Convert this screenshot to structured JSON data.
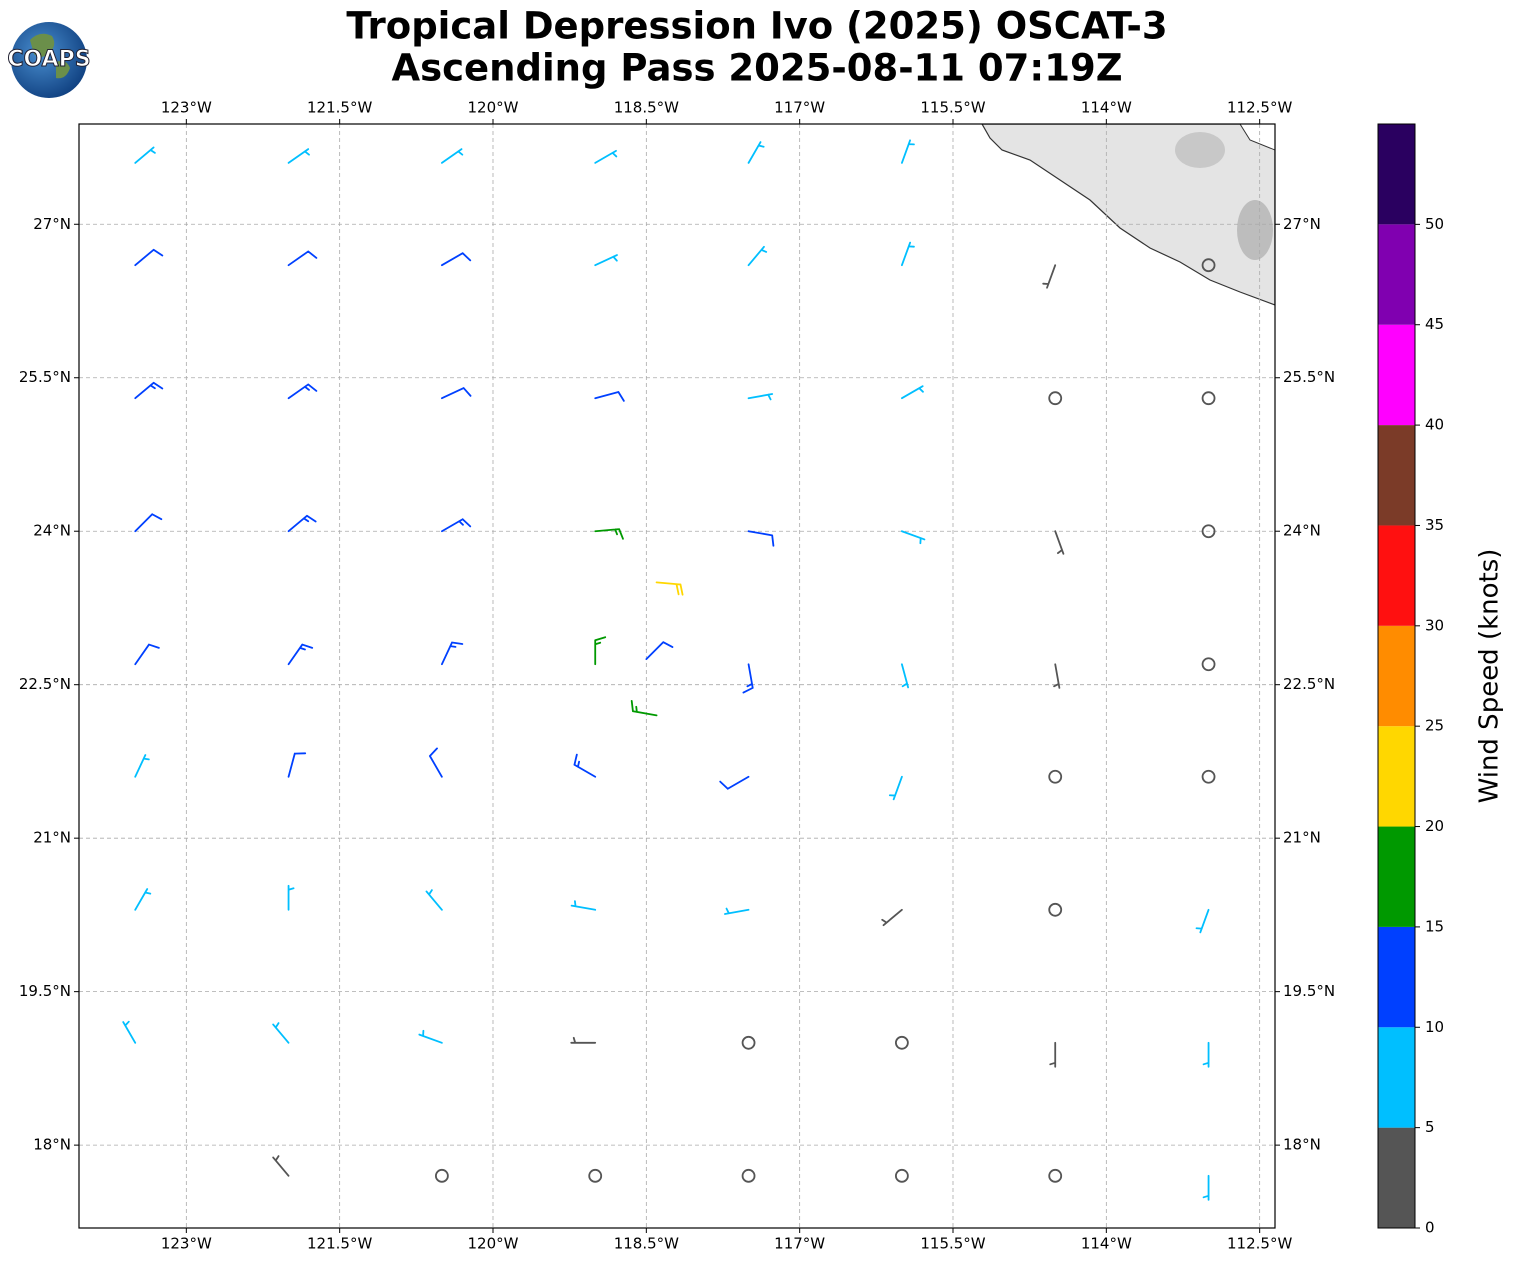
{
  "chart_data": {
    "type": "barb",
    "title": "Tropical Depression Ivo (2025) OSCAT-3",
    "subtitle": "Ascending Pass 2025-08-11 07:19Z",
    "logo": "COAPS",
    "xlim": [
      -124.05,
      -112.35
    ],
    "ylim": [
      17.19,
      27.98
    ],
    "xticks": [
      {
        "value": -123,
        "label": "123°W"
      },
      {
        "value": -121.5,
        "label": "121.5°W"
      },
      {
        "value": -120,
        "label": "120°W"
      },
      {
        "value": -118.5,
        "label": "118.5°W"
      },
      {
        "value": -117,
        "label": "117°W"
      },
      {
        "value": -115.5,
        "label": "115.5°W"
      },
      {
        "value": -114,
        "label": "114°W"
      },
      {
        "value": -112.5,
        "label": "112.5°W"
      }
    ],
    "yticks": [
      {
        "value": 18,
        "label": "18°N"
      },
      {
        "value": 19.5,
        "label": "19.5°N"
      },
      {
        "value": 21,
        "label": "21°N"
      },
      {
        "value": 22.5,
        "label": "22.5°N"
      },
      {
        "value": 24,
        "label": "24°N"
      },
      {
        "value": 25.5,
        "label": "25.5°N"
      },
      {
        "value": 27,
        "label": "27°N"
      }
    ],
    "grid": true,
    "colorbar": {
      "label": "Wind Speed (knots)",
      "ylim": [
        0,
        55
      ],
      "ticks": [
        0,
        5,
        10,
        15,
        20,
        25,
        30,
        35,
        40,
        45,
        50
      ],
      "colors": [
        "#555555",
        "#00bfff",
        "#0040ff",
        "#009900",
        "#ffd700",
        "#ff8c00",
        "#ff1010",
        "#7b3b28",
        "#ff00ff",
        "#8000b0",
        "#2a0060"
      ]
    },
    "barbs": [
      {
        "lon": -123.5,
        "lat": 27.6,
        "speed": 9,
        "dir": 50
      },
      {
        "lon": -122,
        "lat": 27.6,
        "speed": 9,
        "dir": 55
      },
      {
        "lon": -120.5,
        "lat": 27.6,
        "speed": 8,
        "dir": 55
      },
      {
        "lon": -119,
        "lat": 27.6,
        "speed": 8,
        "dir": 60
      },
      {
        "lon": -117.5,
        "lat": 27.6,
        "speed": 7,
        "dir": 30
      },
      {
        "lon": -116,
        "lat": 27.6,
        "speed": 6,
        "dir": 20
      },
      {
        "lon": -123.5,
        "lat": 26.6,
        "speed": 12,
        "dir": 50
      },
      {
        "lon": -122,
        "lat": 26.6,
        "speed": 12,
        "dir": 55
      },
      {
        "lon": -120.5,
        "lat": 26.6,
        "speed": 11,
        "dir": 60
      },
      {
        "lon": -119,
        "lat": 26.6,
        "speed": 9,
        "dir": 65
      },
      {
        "lon": -117.5,
        "lat": 26.6,
        "speed": 8,
        "dir": 40
      },
      {
        "lon": -116,
        "lat": 26.6,
        "speed": 7,
        "dir": 20
      },
      {
        "lon": -114.5,
        "lat": 26.6,
        "speed": 3,
        "dir": 200
      },
      {
        "lon": -113,
        "lat": 26.6,
        "speed": 2,
        "dir": 300
      },
      {
        "lon": -123.5,
        "lat": 25.3,
        "speed": 13,
        "dir": 50
      },
      {
        "lon": -122,
        "lat": 25.3,
        "speed": 13,
        "dir": 55
      },
      {
        "lon": -120.5,
        "lat": 25.3,
        "speed": 12,
        "dir": 65
      },
      {
        "lon": -119,
        "lat": 25.3,
        "speed": 10,
        "dir": 75
      },
      {
        "lon": -117.5,
        "lat": 25.3,
        "speed": 9,
        "dir": 80
      },
      {
        "lon": -116,
        "lat": 25.3,
        "speed": 7,
        "dir": 60
      },
      {
        "lon": -114.5,
        "lat": 25.3,
        "speed": 2,
        "dir": 180
      },
      {
        "lon": -113,
        "lat": 25.3,
        "speed": 1,
        "dir": 0
      },
      {
        "lon": -123.5,
        "lat": 24,
        "speed": 12,
        "dir": 45
      },
      {
        "lon": -122,
        "lat": 24,
        "speed": 13,
        "dir": 50
      },
      {
        "lon": -120.5,
        "lat": 24,
        "speed": 13,
        "dir": 60
      },
      {
        "lon": -119,
        "lat": 24,
        "speed": 16,
        "dir": 85
      },
      {
        "lon": -117.5,
        "lat": 24,
        "speed": 12,
        "dir": 100
      },
      {
        "lon": -116,
        "lat": 24,
        "speed": 8,
        "dir": 110
      },
      {
        "lon": -114.5,
        "lat": 24,
        "speed": 3,
        "dir": 160
      },
      {
        "lon": -113,
        "lat": 24,
        "speed": 2,
        "dir": 200
      },
      {
        "lon": -118.4,
        "lat": 23.5,
        "speed": 22,
        "dir": 95
      },
      {
        "lon": -118.5,
        "lat": 22.75,
        "speed": 11,
        "dir": 45
      },
      {
        "lon": -118.4,
        "lat": 22.2,
        "speed": 17,
        "dir": 280
      },
      {
        "lon": -123.5,
        "lat": 22.7,
        "speed": 12,
        "dir": 35
      },
      {
        "lon": -122,
        "lat": 22.7,
        "speed": 13,
        "dir": 35
      },
      {
        "lon": -120.5,
        "lat": 22.7,
        "speed": 14,
        "dir": 25
      },
      {
        "lon": -119,
        "lat": 22.7,
        "speed": 17,
        "dir": 0
      },
      {
        "lon": -117.5,
        "lat": 22.7,
        "speed": 13,
        "dir": 170
      },
      {
        "lon": -116,
        "lat": 22.7,
        "speed": 8,
        "dir": 165
      },
      {
        "lon": -114.5,
        "lat": 22.7,
        "speed": 3,
        "dir": 170
      },
      {
        "lon": -113,
        "lat": 22.7,
        "speed": 2,
        "dir": 90
      },
      {
        "lon": -123.5,
        "lat": 21.6,
        "speed": 9,
        "dir": 25
      },
      {
        "lon": -122,
        "lat": 21.6,
        "speed": 11,
        "dir": 15
      },
      {
        "lon": -120.5,
        "lat": 21.6,
        "speed": 12,
        "dir": 330
      },
      {
        "lon": -119,
        "lat": 21.6,
        "speed": 13,
        "dir": 300
      },
      {
        "lon": -117.5,
        "lat": 21.6,
        "speed": 11,
        "dir": 240
      },
      {
        "lon": -116,
        "lat": 21.6,
        "speed": 7,
        "dir": 200
      },
      {
        "lon": -114.5,
        "lat": 21.6,
        "speed": 2,
        "dir": 150
      },
      {
        "lon": -113,
        "lat": 21.6,
        "speed": 2,
        "dir": 20
      },
      {
        "lon": -123.5,
        "lat": 20.3,
        "speed": 8,
        "dir": 30
      },
      {
        "lon": -122,
        "lat": 20.3,
        "speed": 8,
        "dir": 0
      },
      {
        "lon": -120.5,
        "lat": 20.3,
        "speed": 8,
        "dir": 320
      },
      {
        "lon": -119,
        "lat": 20.3,
        "speed": 7,
        "dir": 280
      },
      {
        "lon": -117.5,
        "lat": 20.3,
        "speed": 5,
        "dir": 260
      },
      {
        "lon": -116,
        "lat": 20.3,
        "speed": 3,
        "dir": 230
      },
      {
        "lon": -114.5,
        "lat": 20.3,
        "speed": 2,
        "dir": 180
      },
      {
        "lon": -113,
        "lat": 20.3,
        "speed": 6,
        "dir": 200
      },
      {
        "lon": -123.5,
        "lat": 19,
        "speed": 7,
        "dir": 330
      },
      {
        "lon": -122,
        "lat": 19,
        "speed": 6,
        "dir": 320
      },
      {
        "lon": -120.5,
        "lat": 19,
        "speed": 5,
        "dir": 290
      },
      {
        "lon": -119,
        "lat": 19,
        "speed": 3,
        "dir": 270
      },
      {
        "lon": -117.5,
        "lat": 19,
        "speed": 2,
        "dir": 200
      },
      {
        "lon": -116,
        "lat": 19,
        "speed": 1,
        "dir": 0
      },
      {
        "lon": -114.5,
        "lat": 19,
        "speed": 3,
        "dir": 180
      },
      {
        "lon": -113,
        "lat": 19,
        "speed": 6,
        "dir": 180
      },
      {
        "lon": -122,
        "lat": 17.7,
        "speed": 3,
        "dir": 320
      },
      {
        "lon": -120.5,
        "lat": 17.7,
        "speed": 2,
        "dir": 300
      },
      {
        "lon": -119,
        "lat": 17.7,
        "speed": 1,
        "dir": 0
      },
      {
        "lon": -117.5,
        "lat": 17.7,
        "speed": 2,
        "dir": 250
      },
      {
        "lon": -116,
        "lat": 17.7,
        "speed": 1,
        "dir": 0
      },
      {
        "lon": -114.5,
        "lat": 17.7,
        "speed": 2,
        "dir": 200
      },
      {
        "lon": -113,
        "lat": 17.7,
        "speed": 5,
        "dir": 180
      }
    ]
  }
}
